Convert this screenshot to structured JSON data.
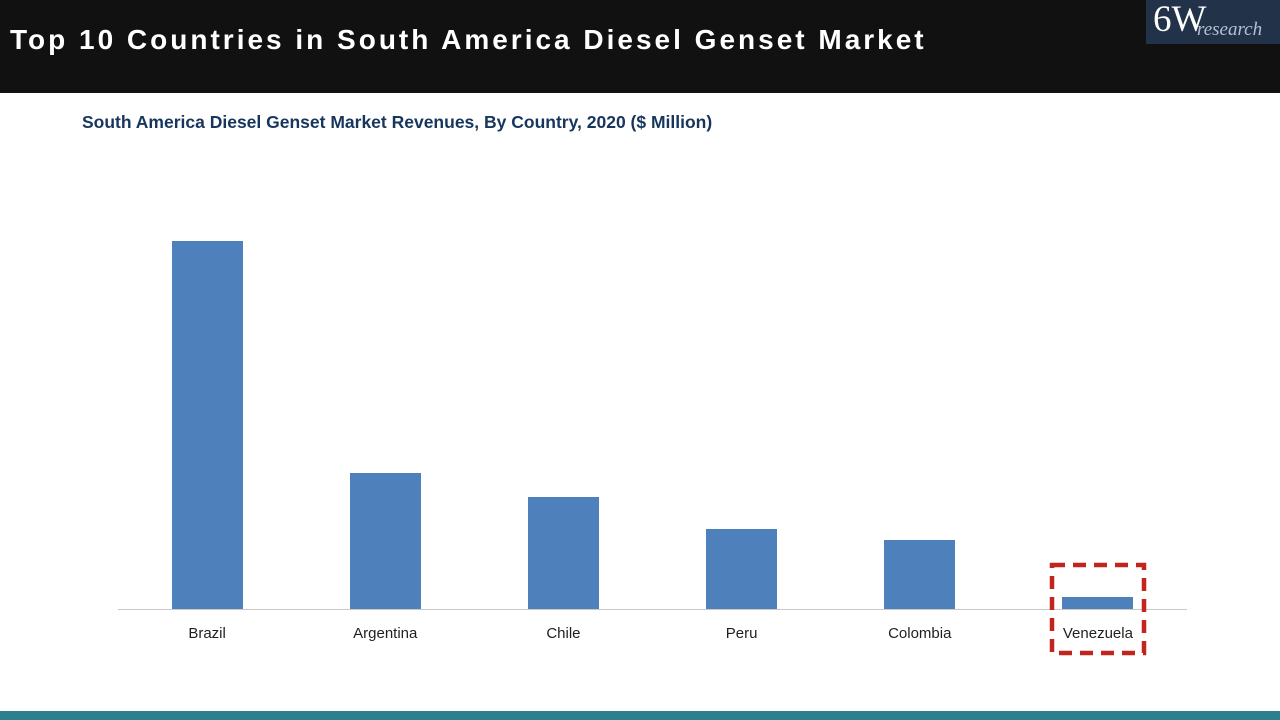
{
  "header": {
    "title": "Top 10 Countries in South America Diesel Genset Market",
    "logo": {
      "main": "6W",
      "sub": "research"
    }
  },
  "chart_data": {
    "type": "bar",
    "title": "South America Diesel Genset Market Revenues, By Country, 2020 ($ Million)",
    "categories": [
      "Brazil",
      "Argentina",
      "Chile",
      "Peru",
      "Colombia",
      "Venezuela"
    ],
    "values": [
      368,
      136,
      112,
      80,
      69,
      12
    ],
    "xlabel": "",
    "ylabel": "",
    "ylim": [
      0,
      400
    ],
    "grid": false,
    "legend": false,
    "bar_color": "#4e81bc",
    "axis_line_color": "#c9c9c9",
    "highlight": {
      "category": "Venezuela",
      "style": "dashed-red-box",
      "color": "#c2251d"
    }
  },
  "colors": {
    "header_bg": "#111111",
    "header_text": "#ffffff",
    "logo_bg": "#223349",
    "logo_sub_text": "#b4c1d2",
    "chart_title_text": "#17365d",
    "category_label_text": "#1f1f1f",
    "footer_accent": "#2e7f8d"
  }
}
